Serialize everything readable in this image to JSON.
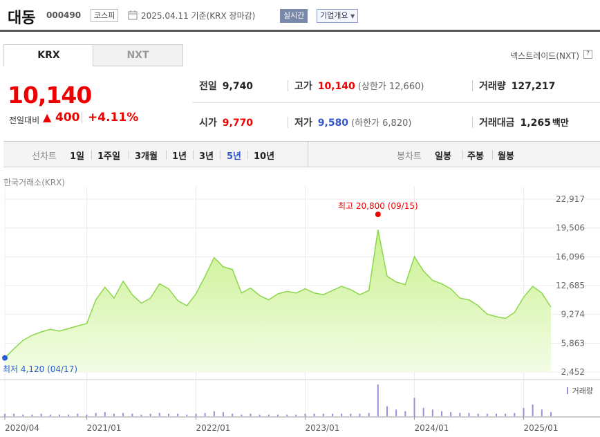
{
  "header": {
    "name": "대동",
    "code": "000490",
    "market": "코스피",
    "date": "2025.04.11 기준(KRX 장마감)",
    "realtime": "실시간",
    "overview": "기업개요"
  },
  "tabs": {
    "krx": "KRX",
    "nxt": "NXT"
  },
  "nxt_link": "넥스트레이드(NXT)",
  "help": "?",
  "price": {
    "current": "10,140",
    "change_label": "전일대비",
    "change_arrow": "▲",
    "change": "400",
    "change_pct": "+4.11%"
  },
  "stats": {
    "prev_label": "전일",
    "prev": "9,740",
    "high_label": "고가",
    "high": "10,140",
    "upper_limit": "(상한가 12,660)",
    "volume_label": "거래량",
    "volume": "127,217",
    "open_label": "시가",
    "open": "9,770",
    "low_label": "저가",
    "low": "9,580",
    "lower_limit": "(하한가 6,820)",
    "amount_label": "거래대금",
    "amount": "1,265",
    "amount_unit": "백만"
  },
  "period_nav": {
    "line_label": "선차트",
    "line_periods": [
      "1일",
      "1주일",
      "3개월",
      "1년",
      "3년",
      "5년",
      "10년"
    ],
    "active": "5년",
    "candle_label": "봉차트",
    "candle_periods": [
      "일봉",
      "주봉",
      "월봉"
    ]
  },
  "exchange_label": "한국거래소(KRX)",
  "colors": {
    "up": "#e00000",
    "down": "#3355cc",
    "area_fill": "#d6f5a8",
    "line": "#8bd64a"
  },
  "chart_data": {
    "type": "area",
    "ylim": [
      2452,
      22917
    ],
    "yticks": [
      "22,917",
      "19,506",
      "16,096",
      "12,685",
      "9,274",
      "5,863",
      "2,452"
    ],
    "xticks": [
      "2020/04",
      "2021/01",
      "2022/01",
      "2023/01",
      "2024/01",
      "2025/01"
    ],
    "max_label": "최고 20,800 (09/15)",
    "min_label": "최저 4,120 (04/17)",
    "volume_label": "거래량",
    "series": [
      {
        "x": [
          "2020/04",
          "2020/05",
          "2020/06",
          "2020/07",
          "2020/08",
          "2020/09",
          "2020/10",
          "2020/11",
          "2020/12",
          "2021/01",
          "2021/02",
          "2021/03",
          "2021/04",
          "2021/05",
          "2021/06",
          "2021/07",
          "2021/08",
          "2021/09",
          "2021/10",
          "2021/11",
          "2021/12",
          "2022/01",
          "2022/02",
          "2022/03",
          "2022/04",
          "2022/05",
          "2022/06",
          "2022/07",
          "2022/08",
          "2022/09",
          "2022/10",
          "2022/11",
          "2022/12",
          "2023/01",
          "2023/02",
          "2023/03",
          "2023/04",
          "2023/05",
          "2023/06",
          "2023/07",
          "2023/08",
          "2023/09",
          "2023/10",
          "2023/11",
          "2023/12",
          "2024/01",
          "2024/02",
          "2024/03",
          "2024/04",
          "2024/05",
          "2024/06",
          "2024/07",
          "2024/08",
          "2024/09",
          "2024/10",
          "2024/11",
          "2024/12",
          "2025/01",
          "2025/02",
          "2025/03",
          "2025/04"
        ],
        "values": [
          4120,
          5200,
          6200,
          6800,
          7200,
          7500,
          7300,
          7600,
          7900,
          8200,
          11000,
          12500,
          11200,
          13200,
          11600,
          10600,
          11200,
          12900,
          12300,
          10900,
          10300,
          11700,
          13800,
          16000,
          14900,
          14600,
          11800,
          12400,
          11500,
          11000,
          11700,
          12000,
          11800,
          12300,
          11800,
          11600,
          12100,
          12600,
          12200,
          11600,
          12100,
          19300,
          13800,
          13100,
          12800,
          16100,
          14400,
          13300,
          12900,
          12300,
          11200,
          11000,
          10300,
          9300,
          9000,
          8800,
          9500,
          11300,
          12600,
          11800,
          10140
        ]
      }
    ],
    "volume_values": [
      3,
      3,
      2,
      2,
      3,
      2,
      2,
      2,
      3,
      2,
      4,
      5,
      3,
      4,
      3,
      2,
      3,
      4,
      3,
      3,
      2,
      3,
      4,
      6,
      5,
      3,
      2,
      3,
      2,
      2,
      2,
      2,
      2,
      3,
      3,
      3,
      3,
      3,
      3,
      3,
      4,
      38,
      12,
      8,
      6,
      22,
      10,
      8,
      6,
      5,
      4,
      4,
      3,
      3,
      3,
      3,
      4,
      10,
      14,
      8,
      5
    ]
  }
}
